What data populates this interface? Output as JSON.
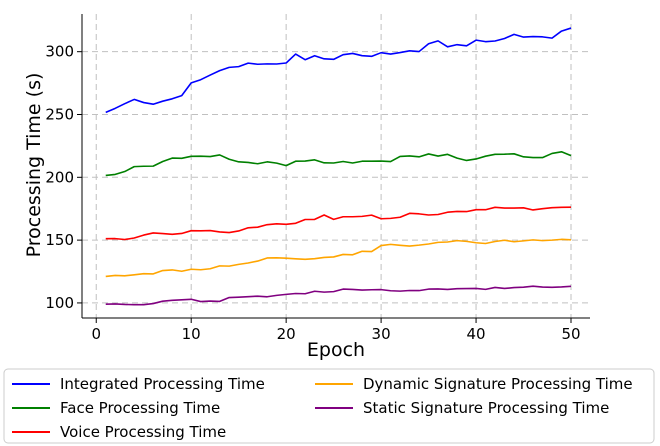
{
  "chart_data": {
    "type": "line",
    "xlabel": "Epoch",
    "ylabel": "Processing Time (s)",
    "xlim": [
      -1.5,
      52
    ],
    "ylim": [
      88,
      330
    ],
    "xticks": [
      0,
      10,
      20,
      30,
      40,
      50
    ],
    "yticks": [
      100,
      150,
      200,
      250,
      300
    ],
    "grid": true,
    "legend_position": "below",
    "x": [
      1,
      2,
      3,
      4,
      5,
      6,
      7,
      8,
      9,
      10,
      11,
      12,
      13,
      14,
      15,
      16,
      17,
      18,
      19,
      20,
      21,
      22,
      23,
      24,
      25,
      26,
      27,
      28,
      29,
      30,
      31,
      32,
      33,
      34,
      35,
      36,
      37,
      38,
      39,
      40,
      41,
      42,
      43,
      44,
      45,
      46,
      47,
      48,
      49,
      50
    ],
    "series": [
      {
        "name": "Integrated Processing Time",
        "color": "#0000ff",
        "values": [
          251.7,
          254.9,
          258.6,
          262.0,
          259.5,
          258.2,
          260.6,
          262.5,
          265.0,
          275.2,
          277.7,
          281.4,
          284.9,
          287.5,
          288.1,
          290.9,
          290.0,
          290.3,
          290.2,
          291.0,
          298.1,
          293.6,
          296.8,
          294.3,
          293.9,
          297.6,
          298.6,
          296.8,
          296.3,
          299.2,
          298.1,
          299.3,
          300.7,
          300.1,
          306.3,
          308.6,
          303.9,
          305.6,
          304.7,
          309.2,
          308.0,
          308.5,
          310.5,
          313.8,
          311.6,
          312.0,
          311.8,
          310.8,
          316.4,
          318.8
        ]
      },
      {
        "name": "Face Processing Time",
        "color": "#008000",
        "values": [
          201.5,
          202.3,
          204.6,
          208.5,
          208.8,
          208.9,
          212.6,
          215.3,
          215.1,
          216.7,
          216.8,
          216.5,
          217.8,
          214.4,
          212.3,
          211.8,
          210.8,
          212.3,
          211.3,
          209.3,
          212.8,
          212.9,
          213.9,
          211.5,
          211.4,
          212.6,
          211.4,
          212.8,
          212.8,
          212.9,
          212.5,
          216.6,
          217.0,
          216.3,
          218.6,
          216.9,
          218.3,
          215.3,
          213.4,
          214.6,
          216.8,
          218.3,
          218.4,
          218.7,
          216.3,
          215.7,
          215.7,
          219.0,
          220.3,
          217.3
        ]
      },
      {
        "name": "Voice Processing Time",
        "color": "#ff0000",
        "values": [
          151.1,
          151.2,
          150.5,
          151.7,
          154.0,
          155.7,
          155.2,
          154.6,
          155.3,
          157.5,
          157.4,
          157.6,
          156.5,
          156.0,
          157.3,
          159.8,
          160.3,
          162.3,
          163.0,
          162.6,
          163.4,
          166.4,
          166.5,
          170.0,
          166.5,
          168.6,
          168.6,
          168.9,
          169.9,
          167.0,
          167.3,
          168.2,
          171.3,
          170.9,
          170.0,
          170.4,
          172.2,
          172.8,
          172.7,
          174.2,
          174.2,
          176.1,
          175.5,
          175.5,
          175.7,
          174.0,
          175.0,
          175.8,
          176.1,
          176.2
        ]
      },
      {
        "name": "Dynamic Signature Processing Time",
        "color": "#ffa500",
        "values": [
          121.1,
          121.9,
          121.6,
          122.4,
          123.3,
          123.1,
          125.8,
          126.3,
          125.2,
          126.8,
          126.4,
          127.2,
          129.5,
          129.3,
          130.7,
          131.8,
          133.3,
          135.8,
          135.9,
          135.6,
          135.1,
          134.7,
          135.2,
          136.2,
          136.6,
          138.6,
          138.3,
          141.1,
          140.9,
          145.7,
          146.6,
          145.9,
          145.3,
          146.0,
          146.9,
          148.2,
          148.5,
          149.6,
          149.0,
          147.9,
          147.3,
          148.9,
          149.9,
          148.7,
          149.4,
          150.2,
          149.6,
          150.0,
          150.6,
          150.2
        ]
      },
      {
        "name": "Static Signature Processing Time",
        "color": "#800080",
        "values": [
          99.0,
          99.2,
          98.8,
          98.6,
          98.6,
          99.5,
          101.4,
          102.1,
          102.5,
          102.9,
          101.1,
          101.5,
          101.2,
          104.3,
          104.6,
          105.0,
          105.4,
          104.9,
          106.0,
          106.8,
          107.5,
          107.3,
          109.3,
          108.6,
          109.0,
          111.0,
          110.7,
          110.2,
          110.5,
          110.6,
          109.7,
          109.4,
          109.9,
          109.8,
          111.0,
          111.1,
          110.7,
          111.3,
          111.4,
          111.5,
          110.8,
          112.3,
          111.5,
          112.2,
          112.5,
          113.3,
          112.6,
          112.4,
          112.7,
          113.2
        ]
      }
    ]
  }
}
